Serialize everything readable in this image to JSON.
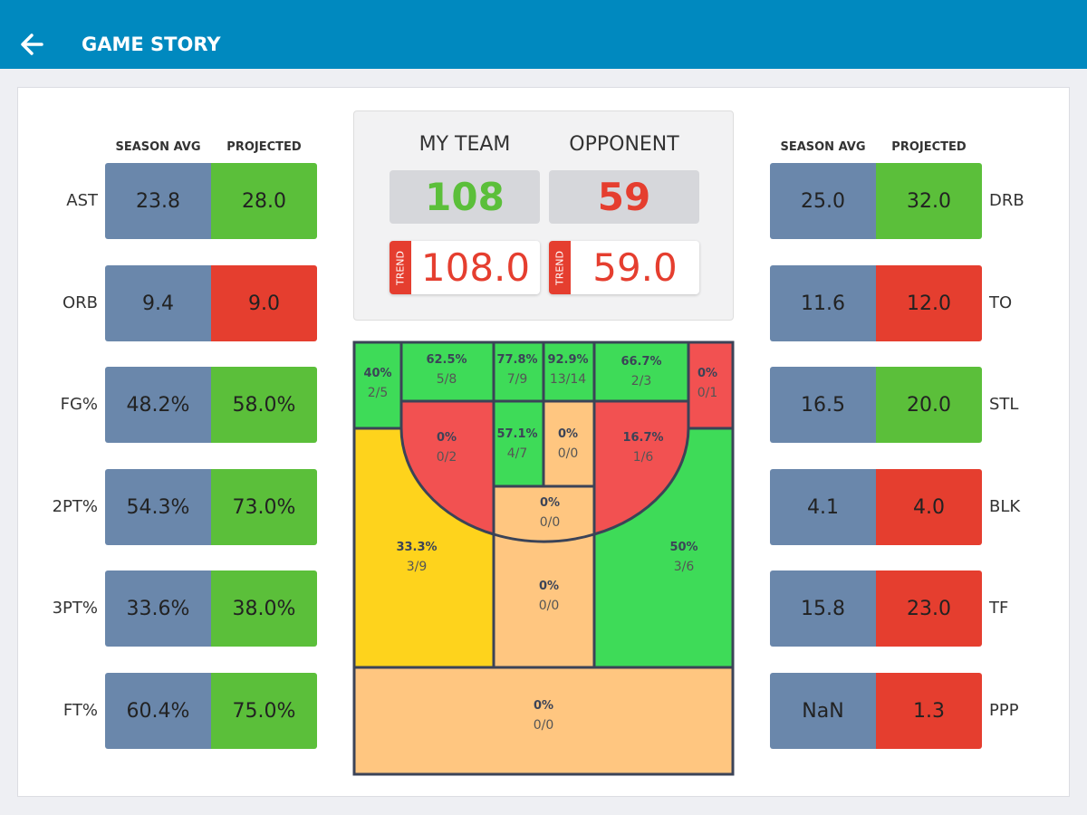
{
  "header": {
    "title": "GAME STORY",
    "back_icon": "arrow-left-icon"
  },
  "colors": {
    "header": "#0089bf",
    "good": "#5bbf3a",
    "bad": "#e53e2f",
    "avg": "#6a87ab"
  },
  "left": {
    "season_avg_label": "SEASON AVG",
    "projected_label": "PROJECTED",
    "rows": [
      {
        "label": "AST",
        "avg": "23.8",
        "proj": "28.0",
        "status": "good"
      },
      {
        "label": "ORB",
        "avg": "9.4",
        "proj": "9.0",
        "status": "bad"
      },
      {
        "label": "FG%",
        "avg": "48.2%",
        "proj": "58.0%",
        "status": "good"
      },
      {
        "label": "2PT%",
        "avg": "54.3%",
        "proj": "73.0%",
        "status": "good"
      },
      {
        "label": "3PT%",
        "avg": "33.6%",
        "proj": "38.0%",
        "status": "good"
      },
      {
        "label": "FT%",
        "avg": "60.4%",
        "proj": "75.0%",
        "status": "good"
      }
    ]
  },
  "right": {
    "season_avg_label": "SEASON AVG",
    "projected_label": "PROJECTED",
    "rows": [
      {
        "label": "DRB",
        "avg": "25.0",
        "proj": "32.0",
        "status": "good"
      },
      {
        "label": "TO",
        "avg": "11.6",
        "proj": "12.0",
        "status": "bad"
      },
      {
        "label": "STL",
        "avg": "16.5",
        "proj": "20.0",
        "status": "good"
      },
      {
        "label": "BLK",
        "avg": "4.1",
        "proj": "4.0",
        "status": "bad"
      },
      {
        "label": "TF",
        "avg": "15.8",
        "proj": "23.0",
        "status": "bad"
      },
      {
        "label": "PPP",
        "avg": "NaN",
        "proj": "1.3",
        "status": "bad"
      }
    ]
  },
  "scoreboard": {
    "my_team": "MY TEAM",
    "opponent": "OPPONENT",
    "my_score": "108",
    "opp_score": "59",
    "trend_label": "TREND",
    "my_trend": "108.0",
    "opp_trend": "59.0"
  },
  "court": {
    "zones": [
      {
        "id": "left-corner-3",
        "pct": "40%",
        "made": "2/5",
        "color": "#3edb58"
      },
      {
        "id": "left-top-mid",
        "pct": "62.5%",
        "made": "5/8",
        "color": "#3edb58"
      },
      {
        "id": "paint-top-left",
        "pct": "77.8%",
        "made": "7/9",
        "color": "#3edb58"
      },
      {
        "id": "paint-top-right",
        "pct": "92.9%",
        "made": "13/14",
        "color": "#3edb58"
      },
      {
        "id": "right-top-mid",
        "pct": "66.7%",
        "made": "2/3",
        "color": "#3edb58"
      },
      {
        "id": "right-corner-3",
        "pct": "0%",
        "made": "0/1",
        "color": "#f25151"
      },
      {
        "id": "left-mid-range",
        "pct": "0%",
        "made": "0/2",
        "color": "#f25151"
      },
      {
        "id": "paint-mid-left",
        "pct": "57.1%",
        "made": "4/7",
        "color": "#3edb58"
      },
      {
        "id": "paint-mid-right",
        "pct": "0%",
        "made": "0/0",
        "color": "#ffc680"
      },
      {
        "id": "right-mid-range",
        "pct": "16.7%",
        "made": "1/6",
        "color": "#f25151"
      },
      {
        "id": "free-throw",
        "pct": "0%",
        "made": "0/0",
        "color": "#ffc680"
      },
      {
        "id": "left-wing-3",
        "pct": "33.3%",
        "made": "3/9",
        "color": "#fed31c"
      },
      {
        "id": "top-key-3",
        "pct": "0%",
        "made": "0/0",
        "color": "#ffc680"
      },
      {
        "id": "right-wing-3",
        "pct": "50%",
        "made": "3/6",
        "color": "#3edb58"
      },
      {
        "id": "backcourt",
        "pct": "0%",
        "made": "0/0",
        "color": "#ffc680"
      }
    ]
  }
}
